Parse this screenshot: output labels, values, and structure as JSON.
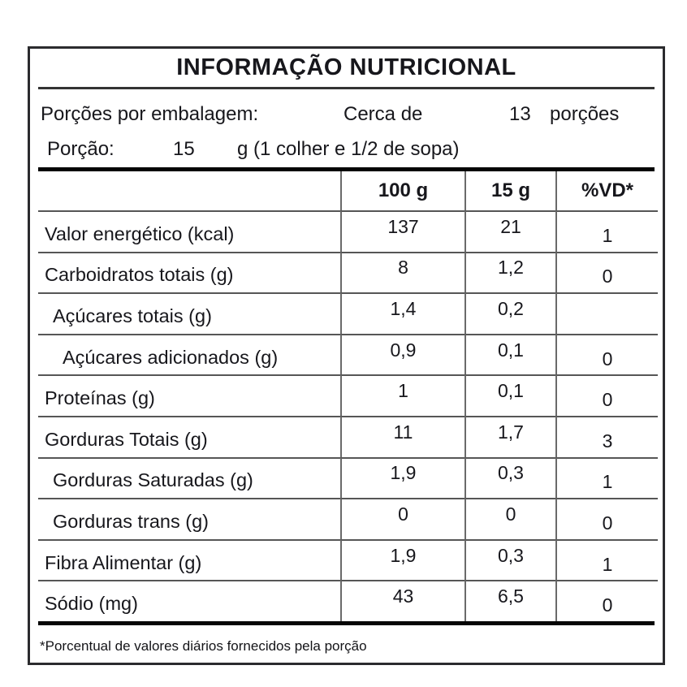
{
  "title": "INFORMAÇÃO NUTRICIONAL",
  "servings_line": {
    "label": "Porções por embalagem:",
    "approx": "Cerca de",
    "count": "13",
    "unit": "porções"
  },
  "portion_line": {
    "label": "Porção:",
    "amount": "15",
    "detail": "g (1 colher e 1/2 de sopa)"
  },
  "columns": [
    "100 g",
    "15 g",
    "%VD*"
  ],
  "rows": [
    {
      "label": "Valor energético (kcal)",
      "indent": 0,
      "per100": "137",
      "per15": "21",
      "vd": "1"
    },
    {
      "label": "Carboidratos totais (g)",
      "indent": 0,
      "per100": "8",
      "per15": "1,2",
      "vd": "0"
    },
    {
      "label": "Açúcares totais (g)",
      "indent": 1,
      "per100": "1,4",
      "per15": "0,2",
      "vd": ""
    },
    {
      "label": "Açúcares adicionados (g)",
      "indent": 2,
      "per100": "0,9",
      "per15": "0,1",
      "vd": "0"
    },
    {
      "label": "Proteínas (g)",
      "indent": 0,
      "per100": "1",
      "per15": "0,1",
      "vd": "0"
    },
    {
      "label": "Gorduras Totais (g)",
      "indent": 0,
      "per100": "11",
      "per15": "1,7",
      "vd": "3"
    },
    {
      "label": "Gorduras Saturadas (g)",
      "indent": 1,
      "per100": "1,9",
      "per15": "0,3",
      "vd": "1"
    },
    {
      "label": "Gorduras trans (g)",
      "indent": 1,
      "per100": "0",
      "per15": "0",
      "vd": "0"
    },
    {
      "label": "Fibra Alimentar (g)",
      "indent": 0,
      "per100": "1,9",
      "per15": "0,3",
      "vd": "1"
    },
    {
      "label": "Sódio (mg)",
      "indent": 0,
      "per100": "43",
      "per15": "6,5",
      "vd": "0"
    }
  ],
  "footnote": "*Porcentual de valores diários fornecidos pela porção",
  "colors": {
    "text": "#17171c",
    "thick_rule": "#050505",
    "thin_rule": "#565656",
    "column_rule": "#6a6a6a",
    "border": "#2b2b2e",
    "background": "#ffffff"
  }
}
